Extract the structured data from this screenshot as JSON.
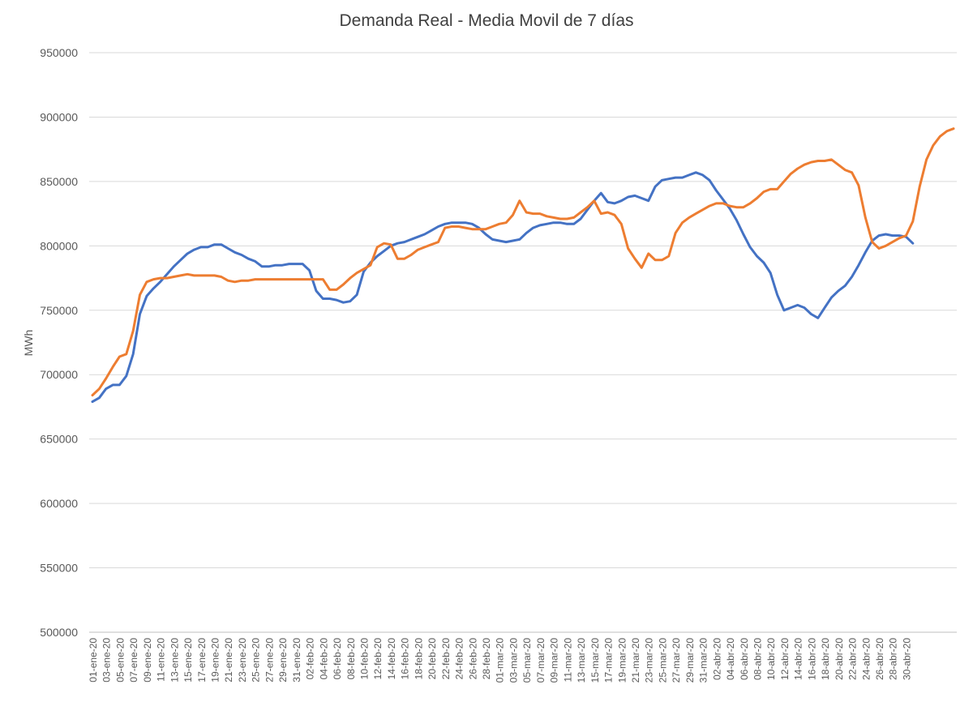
{
  "chart_data": {
    "type": "line",
    "title": "Demanda Real - Media Movil de 7 días",
    "ylabel": "MWh",
    "xlabel": "",
    "ylim": [
      500000,
      950000
    ],
    "ytick_step": 50000,
    "grid": true,
    "legend": "none",
    "x_tick_labels": [
      "01-ene-20",
      "03-ene-20",
      "05-ene-20",
      "07-ene-20",
      "09-ene-20",
      "11-ene-20",
      "13-ene-20",
      "15-ene-20",
      "17-ene-20",
      "19-ene-20",
      "21-ene-20",
      "23-ene-20",
      "25-ene-20",
      "27-ene-20",
      "29-ene-20",
      "31-ene-20",
      "02-feb-20",
      "04-feb-20",
      "06-feb-20",
      "08-feb-20",
      "10-feb-20",
      "12-feb-20",
      "14-feb-20",
      "16-feb-20",
      "18-feb-20",
      "20-feb-20",
      "22-feb-20",
      "24-feb-20",
      "26-feb-20",
      "28-feb-20",
      "01-mar-20",
      "03-mar-20",
      "05-mar-20",
      "07-mar-20",
      "09-mar-20",
      "11-mar-20",
      "13-mar-20",
      "15-mar-20",
      "17-mar-20",
      "19-mar-20",
      "21-mar-20",
      "23-mar-20",
      "25-mar-20",
      "27-mar-20",
      "29-mar-20",
      "31-mar-20",
      "02-abr-20",
      "04-abr-20",
      "06-abr-20",
      "08-abr-20",
      "10-abr-20",
      "12-abr-20",
      "14-abr-20",
      "16-abr-20",
      "18-abr-20",
      "20-abr-20",
      "22-abr-20",
      "24-abr-20",
      "26-abr-20",
      "28-abr-20",
      "30-abr-20"
    ],
    "series": [
      {
        "color": "#4472C4",
        "values": [
          679000,
          682000,
          689000,
          692000,
          692000,
          699000,
          716000,
          747000,
          761000,
          767000,
          772000,
          778000,
          784000,
          789000,
          794000,
          797000,
          799000,
          799000,
          801000,
          801000,
          798000,
          795000,
          793000,
          790000,
          788000,
          784000,
          784000,
          785000,
          785000,
          786000,
          786000,
          786000,
          781000,
          765000,
          759000,
          759000,
          758000,
          756000,
          757000,
          762000,
          780000,
          787000,
          792000,
          796000,
          800000,
          802000,
          803000,
          805000,
          807000,
          809000,
          812000,
          815000,
          817000,
          818000,
          818000,
          818000,
          817000,
          814000,
          809000,
          805000,
          804000,
          803000,
          804000,
          805000,
          810000,
          814000,
          816000,
          817000,
          818000,
          818000,
          817000,
          817000,
          821000,
          828000,
          835000,
          841000,
          834000,
          833000,
          835000,
          838000,
          839000,
          837000,
          835000,
          846000,
          851000,
          852000,
          853000,
          853000,
          855000,
          857000,
          855000,
          851000,
          843000,
          836000,
          829000,
          820000,
          809000,
          799000,
          792000,
          787000,
          779000,
          762000,
          750000,
          752000,
          754000,
          752000,
          747000,
          744000,
          752000,
          760000,
          765000,
          769000,
          776000,
          785000,
          795000,
          804000,
          808000,
          809000,
          808000,
          808000,
          807000,
          802000
        ]
      },
      {
        "color": "#ED7D31",
        "values": [
          684000,
          689000,
          697000,
          706000,
          714000,
          716000,
          734000,
          762000,
          772000,
          774000,
          775000,
          775000,
          776000,
          777000,
          778000,
          777000,
          777000,
          777000,
          777000,
          776000,
          773000,
          772000,
          773000,
          773000,
          774000,
          774000,
          774000,
          774000,
          774000,
          774000,
          774000,
          774000,
          774000,
          774000,
          774000,
          766000,
          766000,
          770000,
          775000,
          779000,
          782000,
          785000,
          799000,
          802000,
          801000,
          790000,
          790000,
          793000,
          797000,
          799000,
          801000,
          803000,
          814000,
          815000,
          815000,
          814000,
          813000,
          813000,
          813000,
          815000,
          817000,
          818000,
          824000,
          835000,
          826000,
          825000,
          825000,
          823000,
          822000,
          821000,
          821000,
          822000,
          826000,
          830000,
          835000,
          825000,
          826000,
          824000,
          817000,
          798000,
          790000,
          783000,
          794000,
          789000,
          789000,
          792000,
          810000,
          818000,
          822000,
          825000,
          828000,
          831000,
          833000,
          833000,
          831000,
          830000,
          830000,
          833000,
          837000,
          842000,
          844000,
          844000,
          850000,
          856000,
          860000,
          863000,
          865000,
          866000,
          866000,
          867000,
          863000,
          859000,
          857000,
          847000,
          822000,
          803000,
          798000,
          800000,
          803000,
          806000,
          808000,
          819000,
          846000,
          867000,
          878000,
          885000,
          889000,
          891000
        ]
      }
    ]
  }
}
